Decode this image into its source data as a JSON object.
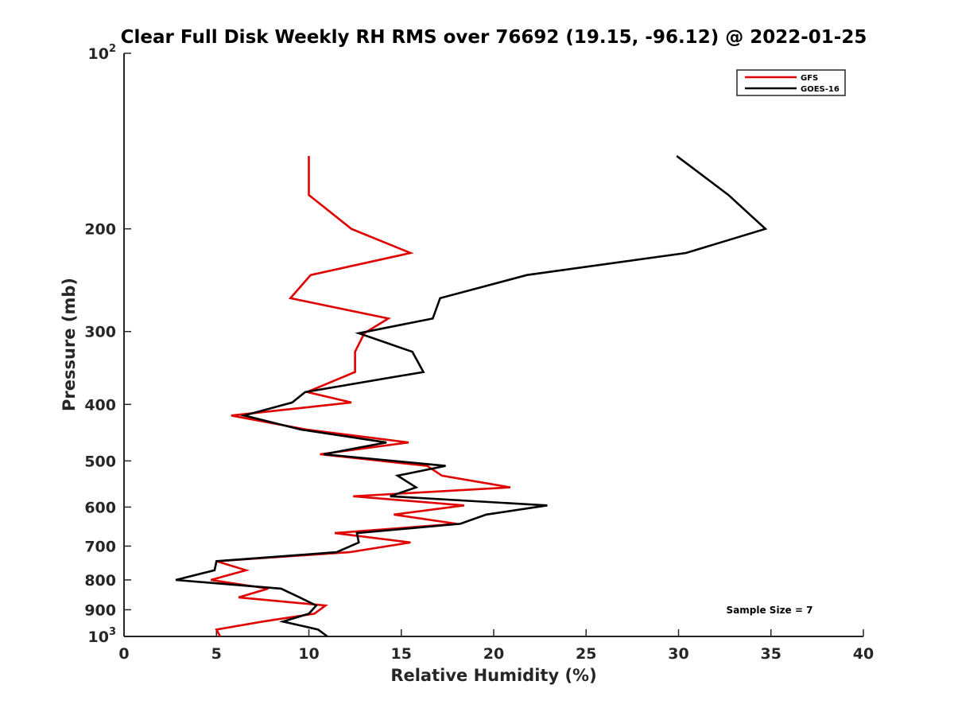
{
  "chart_data": {
    "type": "line",
    "title": "Clear Full Disk Weekly RH RMS over 76692 (19.15, -96.12) @ 2022-01-25",
    "xlabel": "Relative Humidity (%)",
    "ylabel": "Pressure (mb)",
    "xlim": [
      0,
      40
    ],
    "ylim": [
      100,
      1000
    ],
    "yscale": "log",
    "yreversed": true,
    "x_ticks": [
      0,
      5,
      10,
      15,
      20,
      25,
      30,
      35,
      40
    ],
    "y_ticks": [
      {
        "value": 100,
        "base": "10",
        "exp": "2"
      },
      {
        "value": 200,
        "label": "200"
      },
      {
        "value": 300,
        "label": "300"
      },
      {
        "value": 400,
        "label": "400"
      },
      {
        "value": 500,
        "label": "500"
      },
      {
        "value": 600,
        "label": "600"
      },
      {
        "value": 700,
        "label": "700"
      },
      {
        "value": 800,
        "label": "800"
      },
      {
        "value": 900,
        "label": "900"
      },
      {
        "value": 1000,
        "base": "10",
        "exp": "3"
      }
    ],
    "legend_position": "top-right",
    "annotation": "Sample Size = 7",
    "series": [
      {
        "name": "GFS",
        "color": "#e00000",
        "points": [
          [
            10.0,
            150
          ],
          [
            10.0,
            175
          ],
          [
            12.3,
            200
          ],
          [
            15.5,
            220
          ],
          [
            10.1,
            240
          ],
          [
            9.0,
            263
          ],
          [
            14.3,
            285
          ],
          [
            13.0,
            302
          ],
          [
            12.5,
            325
          ],
          [
            12.5,
            352
          ],
          [
            9.9,
            381
          ],
          [
            12.3,
            397
          ],
          [
            5.8,
            418
          ],
          [
            9.9,
            442
          ],
          [
            15.4,
            465
          ],
          [
            10.6,
            487
          ],
          [
            16.4,
            510
          ],
          [
            17.2,
            530
          ],
          [
            20.9,
            555
          ],
          [
            12.4,
            575
          ],
          [
            18.4,
            596
          ],
          [
            14.6,
            618
          ],
          [
            18.0,
            641
          ],
          [
            11.4,
            665
          ],
          [
            15.5,
            690
          ],
          [
            12.2,
            717
          ],
          [
            5.0,
            743
          ],
          [
            6.6,
            770
          ],
          [
            4.7,
            800
          ],
          [
            7.8,
            828
          ],
          [
            6.2,
            857
          ],
          [
            10.9,
            885
          ],
          [
            10.3,
            914
          ],
          [
            7.5,
            943
          ],
          [
            5.0,
            973
          ],
          [
            5.2,
            1000
          ]
        ]
      },
      {
        "name": "GOES-16",
        "color": "#000000",
        "points": [
          [
            29.9,
            150
          ],
          [
            32.7,
            175
          ],
          [
            34.7,
            200
          ],
          [
            30.4,
            220
          ],
          [
            21.8,
            240
          ],
          [
            17.1,
            263
          ],
          [
            16.7,
            285
          ],
          [
            12.7,
            302
          ],
          [
            15.6,
            325
          ],
          [
            16.2,
            352
          ],
          [
            9.8,
            381
          ],
          [
            9.1,
            397
          ],
          [
            6.5,
            418
          ],
          [
            9.6,
            442
          ],
          [
            14.2,
            465
          ],
          [
            10.8,
            487
          ],
          [
            17.4,
            510
          ],
          [
            14.8,
            530
          ],
          [
            15.8,
            555
          ],
          [
            14.4,
            575
          ],
          [
            22.9,
            596
          ],
          [
            19.6,
            618
          ],
          [
            18.2,
            641
          ],
          [
            12.6,
            665
          ],
          [
            12.7,
            690
          ],
          [
            11.5,
            717
          ],
          [
            5.0,
            743
          ],
          [
            4.9,
            770
          ],
          [
            2.8,
            800
          ],
          [
            8.5,
            828
          ],
          [
            9.5,
            857
          ],
          [
            10.4,
            885
          ],
          [
            10.0,
            914
          ],
          [
            8.6,
            943
          ],
          [
            10.5,
            973
          ],
          [
            11.0,
            1000
          ]
        ]
      }
    ]
  }
}
